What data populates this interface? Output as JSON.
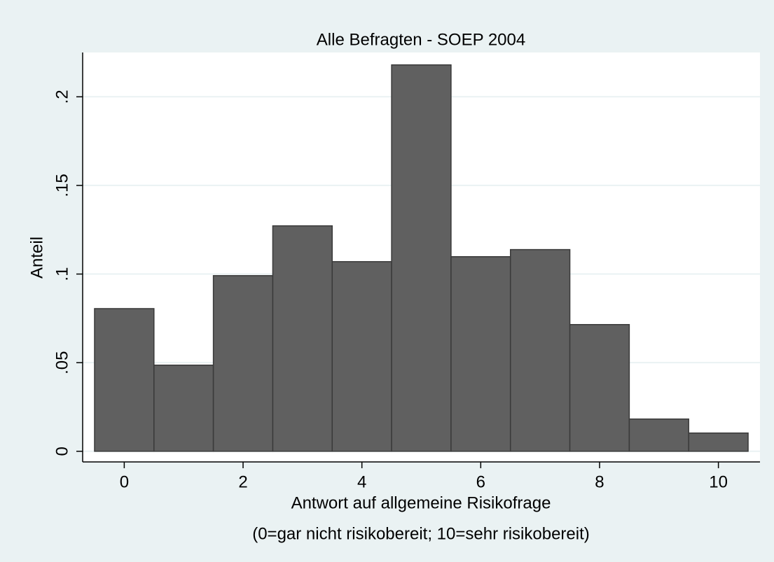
{
  "chart_data": {
    "type": "histogram",
    "title": "Alle Befragten - SOEP 2004",
    "xlabel": [
      "Antwort auf allgemeine Risikofrage",
      "(0=gar nicht risikobereit; 10=sehr risikobereit)"
    ],
    "ylabel": "Anteil",
    "bins": [
      -0.5,
      0.5,
      1.5,
      2.5,
      3.5,
      4.5,
      5.5,
      6.5,
      7.5,
      8.5,
      9.5,
      10.5
    ],
    "values": [
      0.0805,
      0.0486,
      0.0991,
      0.1272,
      0.107,
      0.218,
      0.1098,
      0.1138,
      0.0715,
      0.0182,
      0.0103
    ],
    "color": "#606060",
    "edgecolor": "#3a3a3a",
    "xlim": [
      -0.7,
      10.7
    ],
    "xticks": [
      0,
      2,
      4,
      6,
      8,
      10
    ],
    "ylim": [
      -0.006,
      0.225
    ],
    "yticks": [
      0,
      {
        "value": 0.05,
        "label": ".05"
      },
      {
        "value": 0.1,
        "label": ".1"
      },
      {
        "value": 0.15,
        "label": ".15"
      },
      {
        "value": 0.2,
        "label": ".2"
      }
    ],
    "grid": true
  }
}
